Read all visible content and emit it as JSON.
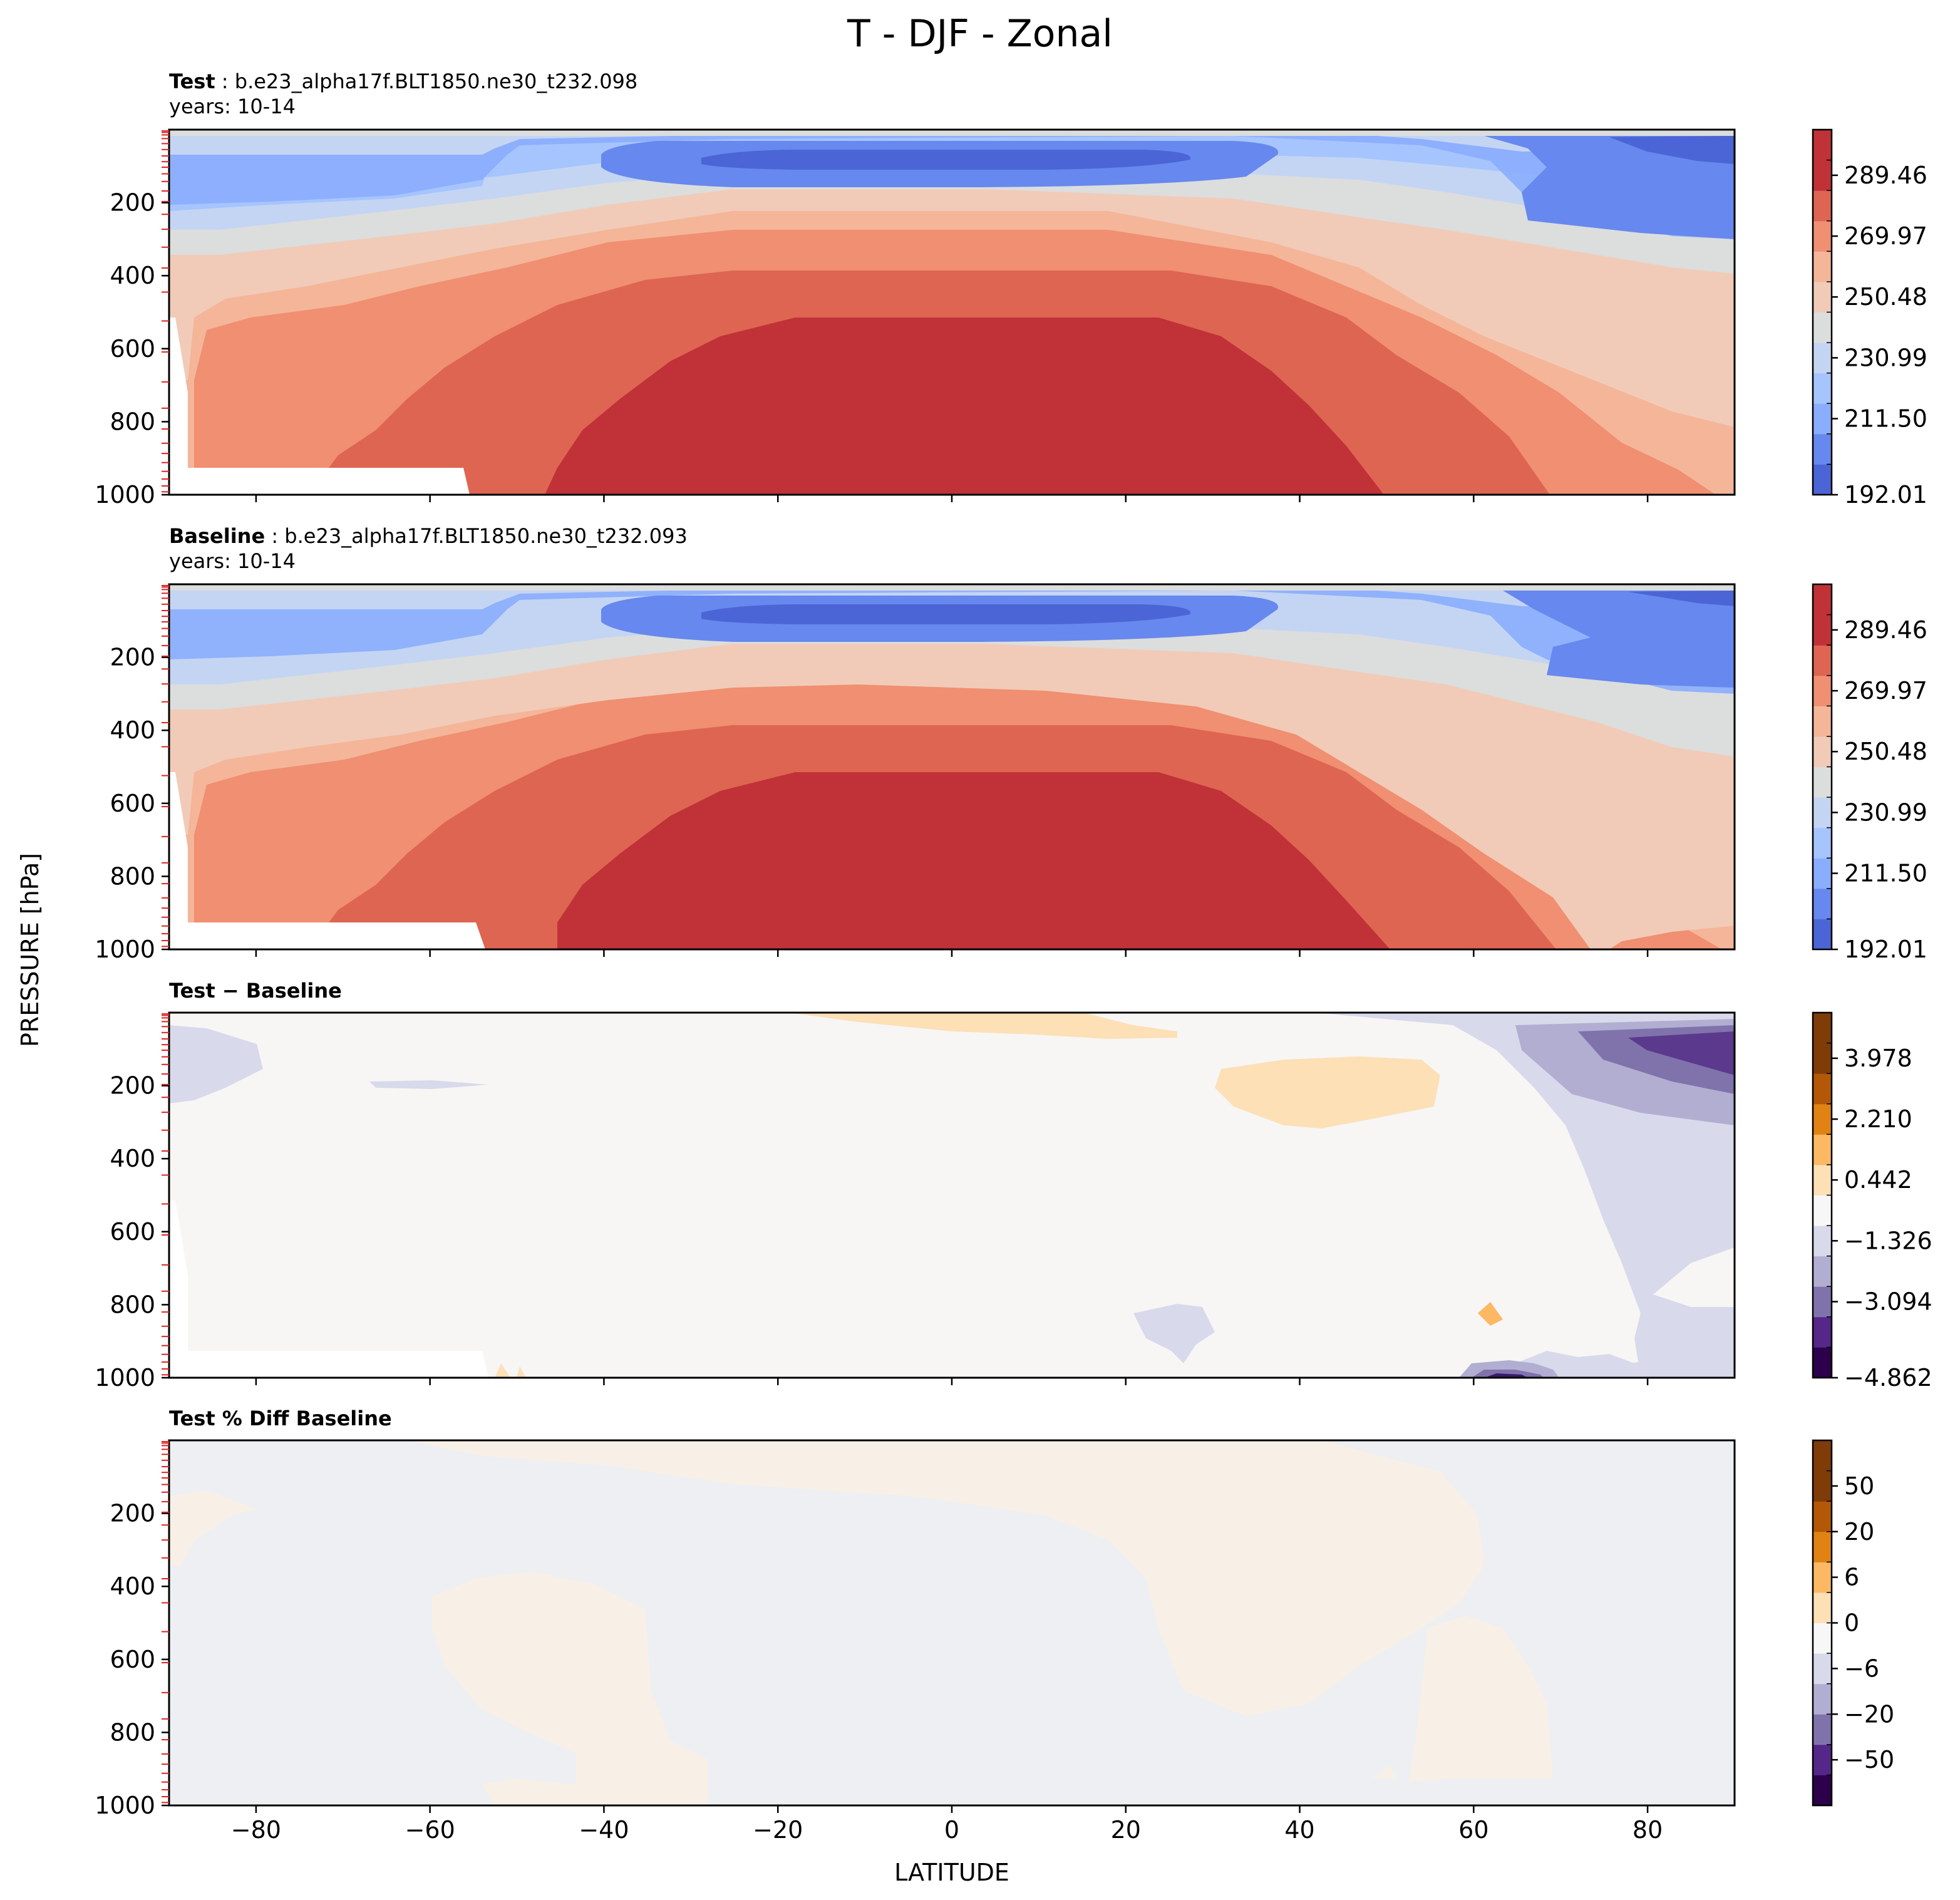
{
  "figure": {
    "title": "T - DJF - Zonal",
    "ylabel": "PRESSURE [hPa]",
    "xlabel": "LATITUDE"
  },
  "panels": [
    {
      "title_bold": "Test",
      "title_sep": " : ",
      "title_rest": "b.e23_alpha17f.BLT1850.ne30_t232.098",
      "subtitle": "years: 10-14"
    },
    {
      "title_bold": "Baseline",
      "title_sep": " : ",
      "title_rest": "b.e23_alpha17f.BLT1850.ne30_t232.093",
      "subtitle": "years: 10-14"
    },
    {
      "title_bold": "Test − Baseline",
      "title_sep": "",
      "title_rest": "",
      "subtitle": ""
    },
    {
      "title_bold": "Test % Diff Baseline",
      "title_sep": "",
      "title_rest": "",
      "subtitle": ""
    }
  ],
  "chart_data": [
    {
      "type": "heatmap",
      "title": "Test : b.e23_alpha17f.BLT1850.ne30_t232.098",
      "subtitle": "years: 10-14",
      "xlabel": "LATITUDE",
      "ylabel": "PRESSURE [hPa]",
      "xlim": [
        -90,
        90
      ],
      "ylim": [
        1000,
        0
      ],
      "xticks": [
        -80,
        -60,
        -40,
        -20,
        0,
        20,
        40,
        60,
        80
      ],
      "yticks": [
        200,
        400,
        600,
        800,
        1000
      ],
      "colorbar": {
        "cmap": "coolwarm",
        "levels": 12,
        "ticks": [
          "289.46",
          "269.97",
          "250.48",
          "230.99",
          "211.50",
          "192.01"
        ]
      }
    },
    {
      "type": "heatmap",
      "title": "Baseline : b.e23_alpha17f.BLT1850.ne30_t232.093",
      "subtitle": "years: 10-14",
      "xlabel": "LATITUDE",
      "ylabel": "PRESSURE [hPa]",
      "xlim": [
        -90,
        90
      ],
      "ylim": [
        1000,
        0
      ],
      "xticks": [
        -80,
        -60,
        -40,
        -20,
        0,
        20,
        40,
        60,
        80
      ],
      "yticks": [
        200,
        400,
        600,
        800,
        1000
      ],
      "colorbar": {
        "cmap": "coolwarm",
        "levels": 12,
        "ticks": [
          "289.46",
          "269.97",
          "250.48",
          "230.99",
          "211.50",
          "192.01"
        ]
      }
    },
    {
      "type": "heatmap",
      "title": "Test − Baseline",
      "xlabel": "LATITUDE",
      "ylabel": "PRESSURE [hPa]",
      "xlim": [
        -90,
        90
      ],
      "ylim": [
        1000,
        0
      ],
      "xticks": [
        -80,
        -60,
        -40,
        -20,
        0,
        20,
        40,
        60,
        80
      ],
      "yticks": [
        200,
        400,
        600,
        800,
        1000
      ],
      "colorbar": {
        "cmap": "PuOr_r",
        "levels": 12,
        "ticks": [
          "3.978",
          "2.210",
          "0.442",
          "−1.326",
          "−3.094",
          "−4.862"
        ]
      }
    },
    {
      "type": "heatmap",
      "title": "Test % Diff Baseline",
      "xlabel": "LATITUDE",
      "ylabel": "PRESSURE [hPa]",
      "xlim": [
        -90,
        90
      ],
      "ylim": [
        1000,
        0
      ],
      "xticks": [
        -80,
        -60,
        -40,
        -20,
        0,
        20,
        40,
        60,
        80
      ],
      "yticks": [
        200,
        400,
        600,
        800,
        1000
      ],
      "colorbar": {
        "cmap": "PuOr_r",
        "levels": 14,
        "ticks": [
          "50",
          "20",
          "6",
          "0",
          "−6",
          "−20",
          "−50"
        ]
      }
    }
  ]
}
